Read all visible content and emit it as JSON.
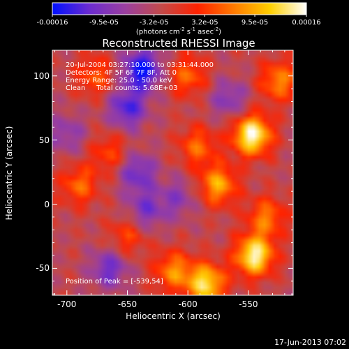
{
  "chart_data": {
    "type": "heatmap",
    "title": "Reconstructed RHESSI Image",
    "xlabel": "Heliocentric X (arcsec)",
    "ylabel": "Heliocentric Y (arcsec)",
    "xlim": [
      -712,
      -513
    ],
    "ylim": [
      -71,
      120
    ],
    "x_ticks": [
      "-700",
      "-650",
      "-600",
      "-550"
    ],
    "x_tick_values": [
      -700,
      -650,
      -600,
      -550
    ],
    "y_ticks": [
      "100",
      "50",
      "0",
      "-50"
    ],
    "y_tick_values": [
      100,
      50,
      0,
      -50
    ],
    "colorbar": {
      "ticks": [
        "-0.00016",
        "-9.5e-05",
        "-3.2e-05",
        "3.2e-05",
        "9.5e-05",
        "0.00016"
      ],
      "tick_values": [
        -0.00016,
        -9.5e-05,
        -3.2e-05,
        3.2e-05,
        9.5e-05,
        0.00016
      ],
      "range": [
        -0.00016,
        0.00016
      ],
      "colors": [
        "#0010ff",
        "#6a2bd0",
        "#9a3fa0",
        "#c24a4a",
        "#ff2200",
        "#ff7a00",
        "#ffd000",
        "#ffffff"
      ]
    },
    "annotations": [
      "20-Jul-2004 03:27:10.000 to 03:31:44.000",
      "Detectors: 4F 5F 6F 7F 8F, Att 0",
      "Energy Range: 25.0 - 50.0 keV",
      "Clean     Total counts: 5.68E+03"
    ],
    "peak_label": "Position of Peak = [-539,54]",
    "blobs": [
      {
        "x": -547,
        "y": 54,
        "v": 1.0
      },
      {
        "x": -545,
        "y": -40,
        "v": 0.95
      },
      {
        "x": -525,
        "y": 96,
        "v": 0.55
      },
      {
        "x": -612,
        "y": -52,
        "v": 0.55
      },
      {
        "x": -585,
        "y": -62,
        "v": 0.85
      },
      {
        "x": -575,
        "y": 15,
        "v": 0.65
      },
      {
        "x": -592,
        "y": 45,
        "v": 0.45
      },
      {
        "x": -600,
        "y": 100,
        "v": 0.45
      },
      {
        "x": -690,
        "y": 15,
        "v": 0.45
      },
      {
        "x": -665,
        "y": 40,
        "v": 0.35
      },
      {
        "x": -677,
        "y": 100,
        "v": 0.4
      },
      {
        "x": -650,
        "y": -25,
        "v": 0.35
      },
      {
        "x": -535,
        "y": -10,
        "v": 0.5
      },
      {
        "x": -638,
        "y": 105,
        "v": -0.75
      },
      {
        "x": -650,
        "y": 75,
        "v": -0.55
      },
      {
        "x": -642,
        "y": 25,
        "v": -0.45
      },
      {
        "x": -665,
        "y": -50,
        "v": -0.45
      },
      {
        "x": -635,
        "y": -5,
        "v": -0.4
      },
      {
        "x": -700,
        "y": 55,
        "v": -0.3
      },
      {
        "x": -608,
        "y": 5,
        "v": -0.3
      },
      {
        "x": -566,
        "y": 82,
        "v": -0.35
      }
    ]
  },
  "timestamp": "17-Jun-2013 07:02"
}
